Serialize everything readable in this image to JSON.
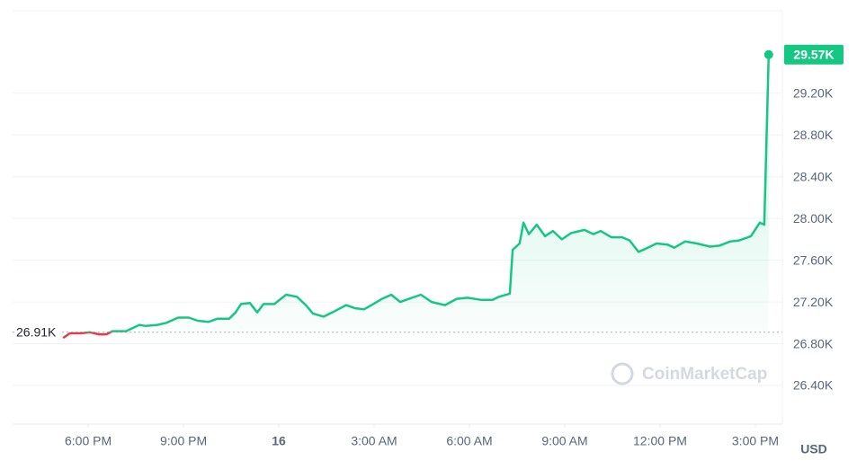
{
  "chart_data": {
    "type": "line",
    "x": [
      17.21,
      17.43,
      17.77,
      18.06,
      18.34,
      18.57,
      18.76,
      19.19,
      19.47,
      19.61,
      19.81,
      20.18,
      20.46,
      20.83,
      21.17,
      21.45,
      21.79,
      22.07,
      22.44,
      22.64,
      22.81,
      23.09,
      23.32,
      23.52,
      23.86,
      24.23,
      24.57,
      24.85,
      25.07,
      25.41,
      25.75,
      26.12,
      26.4,
      26.69,
      26.97,
      27.25,
      27.54,
      27.82,
      28.1,
      28.47,
      28.81,
      29.23,
      29.6,
      29.94,
      30.37,
      30.73,
      30.93,
      31.27,
      31.36,
      31.58,
      31.7,
      31.87,
      32.12,
      32.38,
      32.63,
      32.91,
      33.2,
      33.62,
      33.9,
      34.13,
      34.47,
      34.81,
      35.04,
      35.32,
      35.55,
      35.89,
      36.23,
      36.45,
      36.79,
      37.16,
      37.58,
      37.87,
      38.21,
      38.49,
      38.86,
      39.14,
      39.28,
      39.42
    ],
    "series": [
      {
        "color": "#16c784",
        "below_color": "#ea3943",
        "values": [
          26856,
          26900,
          26900,
          26910,
          26890,
          26890,
          26920,
          26920,
          26960,
          26980,
          26970,
          26980,
          27000,
          27050,
          27050,
          27020,
          27010,
          27040,
          27040,
          27100,
          27180,
          27190,
          27100,
          27180,
          27180,
          27270,
          27250,
          27170,
          27090,
          27060,
          27110,
          27170,
          27140,
          27130,
          27180,
          27230,
          27270,
          27200,
          27230,
          27270,
          27200,
          27170,
          27230,
          27240,
          27220,
          27220,
          27250,
          27280,
          27700,
          27760,
          27960,
          27850,
          27940,
          27830,
          27880,
          27800,
          27860,
          27890,
          27850,
          27880,
          27820,
          27820,
          27790,
          27680,
          27710,
          27760,
          27750,
          27720,
          27780,
          27760,
          27730,
          27740,
          27780,
          27790,
          27830,
          27960,
          27940,
          29570
        ],
        "value_labels": [
          null,
          null,
          null,
          null,
          null,
          null,
          null,
          null,
          null,
          null,
          null,
          null,
          null,
          null,
          null,
          null,
          null,
          null,
          null,
          null,
          null,
          null,
          null,
          null,
          null,
          null,
          null,
          null,
          null,
          null,
          null,
          null,
          null,
          null,
          null,
          null,
          null,
          null,
          null,
          null,
          null,
          null,
          null,
          null,
          null,
          null,
          null,
          null,
          null,
          null,
          null,
          null,
          null,
          null,
          null,
          null,
          null,
          null,
          null,
          null,
          null,
          null,
          null,
          null,
          null,
          null,
          null,
          null,
          null,
          null,
          null,
          null,
          null,
          null,
          null,
          null,
          null,
          "29.57K"
        ]
      }
    ],
    "reference": {
      "value": 26910,
      "label": "26.91K"
    },
    "xlim": [
      15.62,
      39.85
    ],
    "xticks": [
      {
        "value": 18,
        "label": "6:00 PM"
      },
      {
        "value": 21,
        "label": "9:00 PM"
      },
      {
        "value": 24,
        "label": "16"
      },
      {
        "value": 27,
        "label": "3:00 AM"
      },
      {
        "value": 30,
        "label": "6:00 AM"
      },
      {
        "value": 33,
        "label": "9:00 AM"
      },
      {
        "value": 36,
        "label": "12:00 PM"
      },
      {
        "value": 39,
        "label": "3:00 PM"
      }
    ],
    "ylim": [
      26030,
      29990
    ],
    "yticks": [
      {
        "value": 26400,
        "label": "26.40K"
      },
      {
        "value": 26800,
        "label": "26.80K"
      },
      {
        "value": 27200,
        "label": "27.20K"
      },
      {
        "value": 27600,
        "label": "27.60K"
      },
      {
        "value": 28000,
        "label": "28.00K"
      },
      {
        "value": 28400,
        "label": "28.40K"
      },
      {
        "value": 28800,
        "label": "28.80K"
      },
      {
        "value": 29200,
        "label": "29.20K"
      }
    ],
    "grid": true,
    "currency": "USD",
    "watermark": "CoinMarketCap"
  }
}
